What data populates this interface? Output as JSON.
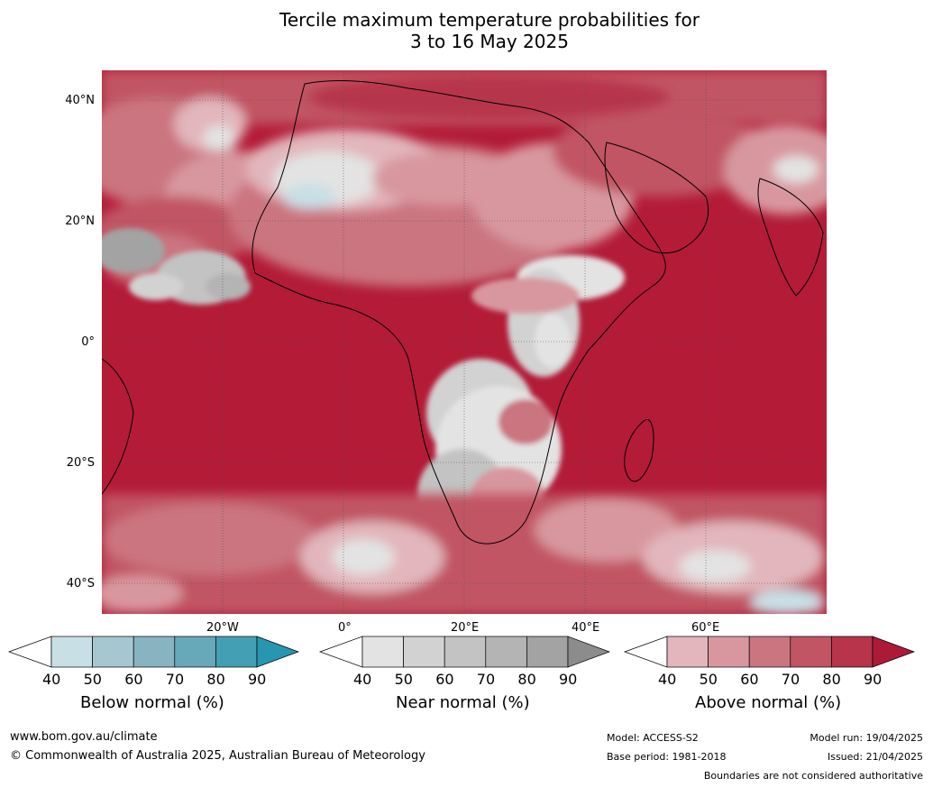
{
  "title_line1": "Tercile maximum temperature probabilities for",
  "title_line2": "3 to 16 May 2025",
  "lat_labels": [
    "40°N",
    "20°N",
    "0°",
    "20°S",
    "40°S"
  ],
  "lon_labels": [
    "20°W",
    "0°",
    "20°E",
    "40°E",
    "60°E"
  ],
  "colorbars": [
    {
      "title": "Below normal (%)",
      "ticks": [
        "40",
        "50",
        "60",
        "70",
        "80",
        "90"
      ],
      "colors": [
        "#ffffff",
        "#c8dfe6",
        "#a6c7cf",
        "#88b4c1",
        "#67a8b9",
        "#43a0b4",
        "#2696b1"
      ]
    },
    {
      "title": "Near normal (%)",
      "ticks": [
        "40",
        "50",
        "60",
        "70",
        "80",
        "90"
      ],
      "colors": [
        "#ffffff",
        "#e3e3e3",
        "#d2d2d2",
        "#c3c3c3",
        "#b4b4b4",
        "#a3a3a3",
        "#8c8c8c"
      ]
    },
    {
      "title": "Above normal (%)",
      "ticks": [
        "40",
        "50",
        "60",
        "70",
        "80",
        "90"
      ],
      "colors": [
        "#ffffff",
        "#e2b6bc",
        "#d8979f",
        "#cb7580",
        "#c15564",
        "#b7344b",
        "#ad1a37"
      ]
    }
  ],
  "footer": {
    "site": "www.bom.gov.au/climate",
    "copyright": "© Commonwealth of Australia 2025, Australian Bureau of Meteorology",
    "model": "Model: ACCESS-S2",
    "base_period": "Base period: 1981-2018",
    "model_run": "Model run: 19/04/2025",
    "issued": "Issued: 21/04/2025",
    "disclaimer": "Boundaries are not considered authoritative"
  }
}
